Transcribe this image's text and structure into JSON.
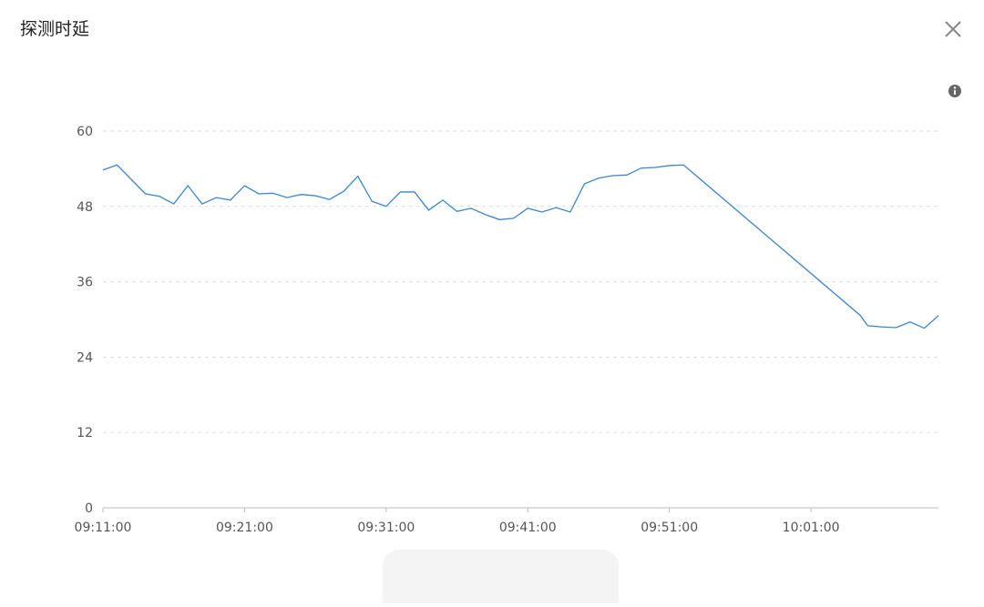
{
  "chart_data": {
    "type": "line",
    "title": "探测时延",
    "x": [
      "09:11:00",
      "09:12:00",
      "09:13:00",
      "09:14:00",
      "09:15:00",
      "09:16:00",
      "09:17:00",
      "09:18:00",
      "09:19:00",
      "09:20:00",
      "09:21:00",
      "09:22:00",
      "09:23:00",
      "09:24:00",
      "09:25:00",
      "09:26:00",
      "09:27:00",
      "09:28:00",
      "09:29:00",
      "09:30:00",
      "09:31:00",
      "09:32:00",
      "09:33:00",
      "09:34:00",
      "09:35:00",
      "09:36:00",
      "09:37:00",
      "09:38:00",
      "09:39:00",
      "09:40:00",
      "09:41:00",
      "09:42:00",
      "09:43:00",
      "09:44:00",
      "09:45:00",
      "09:46:00",
      "09:47:00",
      "09:48:00",
      "09:49:00",
      "09:50:00",
      "09:51:00",
      "09:52:00",
      "10:04:30",
      "10:05:00",
      "10:06:00",
      "10:07:00",
      "10:08:00",
      "10:09:00",
      "10:10:00"
    ],
    "series": [
      {
        "color": "#3a86d0",
        "values": [
          53.8,
          54.6,
          52.3,
          50.0,
          49.6,
          48.4,
          51.3,
          48.4,
          49.4,
          49.0,
          51.3,
          50.0,
          50.1,
          49.4,
          49.9,
          49.7,
          49.1,
          50.4,
          52.8,
          48.8,
          48.0,
          50.3,
          50.3,
          47.4,
          49.0,
          47.2,
          47.7,
          46.7,
          45.9,
          46.1,
          47.7,
          47.1,
          47.8,
          47.1,
          51.6,
          52.5,
          52.9,
          53.0,
          54.1,
          54.2,
          54.5,
          54.6,
          30.6,
          29.0,
          28.8,
          28.7,
          29.6,
          28.6,
          30.6
        ]
      }
    ],
    "xlim": [
      "09:11:00",
      "10:10:00"
    ],
    "xticks": [
      "09:11:00",
      "09:21:00",
      "09:31:00",
      "09:41:00",
      "09:51:00",
      "10:01:00"
    ],
    "ylim": [
      0,
      60
    ],
    "yticks": [
      0,
      12,
      24,
      36,
      48,
      60
    ],
    "grid": true
  }
}
